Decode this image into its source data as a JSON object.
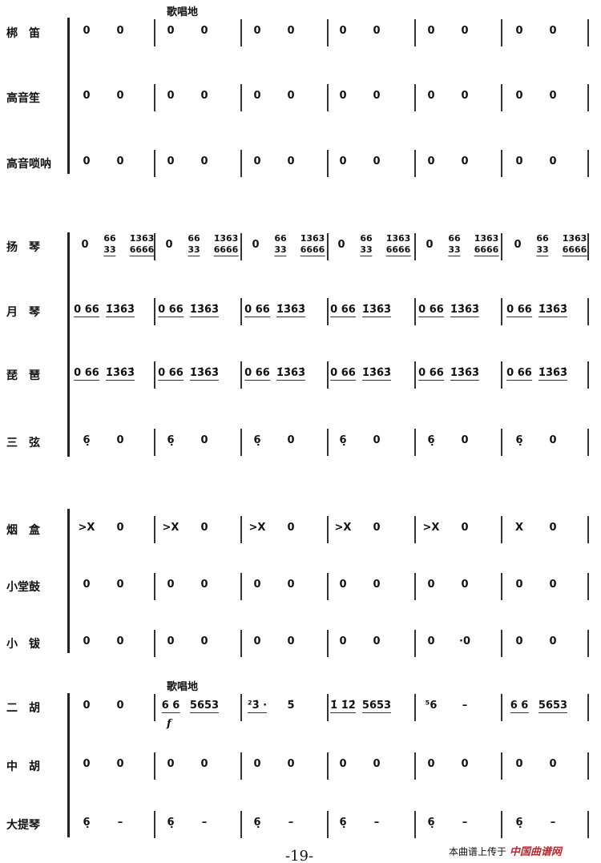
{
  "tempo_top": "歌唱地",
  "tempo_erhu": "歌唱地",
  "dynamic": "f",
  "page_number": "-19-",
  "watermark": {
    "text": "本曲谱上传于",
    "site": "中国曲谱网"
  },
  "instruments": [
    {
      "name": "梆　笛",
      "measures": [
        [
          "0",
          "0"
        ],
        [
          "0",
          "0"
        ],
        [
          "0",
          "0"
        ],
        [
          "0",
          "0"
        ],
        [
          "0",
          "0"
        ],
        [
          "0",
          "0"
        ]
      ]
    },
    {
      "name": "高音笙",
      "measures": [
        [
          "0",
          "0"
        ],
        [
          "0",
          "0"
        ],
        [
          "0",
          "0"
        ],
        [
          "0",
          "0"
        ],
        [
          "0",
          "0"
        ],
        [
          "0",
          "0"
        ]
      ]
    },
    {
      "name": "高音唢呐",
      "measures": [
        [
          "0",
          "0"
        ],
        [
          "0",
          "0"
        ],
        [
          "0",
          "0"
        ],
        [
          "0",
          "0"
        ],
        [
          "0",
          "0"
        ],
        [
          "0",
          "0"
        ]
      ]
    },
    {
      "name": "扬　琴",
      "measures": [
        [
          "0",
          "66/33",
          "1̇3̇6̇3̇/6666"
        ],
        [
          "0",
          "66/33",
          "1̇3̇6̇3̇/6666"
        ],
        [
          "0",
          "66/33",
          "1̇3̇6̇3̇/6666"
        ],
        [
          "0",
          "66/33",
          "1̇3̇6̇3̇/6666"
        ],
        [
          "0",
          "66/33",
          "1̇3̇6̇3̇/6666"
        ],
        [
          "0",
          "66/33",
          "1̇3̇6̇3̇/6666"
        ]
      ]
    },
    {
      "name": "月　琴",
      "measures": [
        [
          "0 66",
          "1̇3̇6̇3̇"
        ],
        [
          "0 66",
          "1̇3̇6̇3̇"
        ],
        [
          "0 66",
          "1̇3̇6̇3̇"
        ],
        [
          "0 66",
          "1̇3̇6̇3̇"
        ],
        [
          "0 66",
          "1̇3̇6̇3̇"
        ],
        [
          "0 66",
          "1̇3̇6̇3̇"
        ]
      ]
    },
    {
      "name": "琵　琶",
      "measures": [
        [
          "0 66",
          "1̇3̇6̇3̇"
        ],
        [
          "0 66",
          "1̇3̇6̇3̇"
        ],
        [
          "0 66",
          "1̇3̇6̇3̇"
        ],
        [
          "0 66",
          "1̇3̇6̇3̇"
        ],
        [
          "0 66",
          "1̇3̇6̇3̇"
        ],
        [
          "0 66",
          "1̇3̇6̇3̇"
        ]
      ]
    },
    {
      "name": "三　弦",
      "measures": [
        [
          "6̣",
          "0"
        ],
        [
          "6̣",
          "0"
        ],
        [
          "6̣",
          "0"
        ],
        [
          "6̣",
          "0"
        ],
        [
          "6̣",
          "0"
        ],
        [
          "6̣",
          "0"
        ]
      ]
    },
    {
      "name": "烟　盒",
      "measures": [
        [
          ">X",
          "0"
        ],
        [
          ">X",
          "0"
        ],
        [
          ">X",
          "0"
        ],
        [
          ">X",
          "0"
        ],
        [
          ">X",
          "0"
        ],
        [
          "X",
          "0"
        ]
      ]
    },
    {
      "name": "小堂鼓",
      "measures": [
        [
          "0",
          "0"
        ],
        [
          "0",
          "0"
        ],
        [
          "0",
          "0"
        ],
        [
          "0",
          "0"
        ],
        [
          "0",
          "0"
        ],
        [
          "0",
          "0"
        ]
      ]
    },
    {
      "name": "小　钹",
      "measures": [
        [
          "0",
          "0"
        ],
        [
          "0",
          "0"
        ],
        [
          "0",
          "0"
        ],
        [
          "0",
          "0"
        ],
        [
          "0",
          "·0"
        ],
        [
          "0",
          "0"
        ]
      ]
    },
    {
      "name": "二　胡",
      "measures": [
        [
          "0",
          "0"
        ],
        [
          "6 6",
          "5653"
        ],
        [
          "²3̇ ·",
          "5̇"
        ],
        [
          "1̇ 1̇2̇",
          "5653"
        ],
        [
          "⁵6",
          "–"
        ],
        [
          "6 6",
          "5653"
        ]
      ]
    },
    {
      "name": "中　胡",
      "measures": [
        [
          "0",
          "0"
        ],
        [
          "0",
          "0"
        ],
        [
          "0",
          "0"
        ],
        [
          "0",
          "0"
        ],
        [
          "0",
          "0"
        ],
        [
          "0",
          "0"
        ]
      ]
    },
    {
      "name": "大提琴",
      "measures": [
        [
          "6̣",
          "–"
        ],
        [
          "6̣",
          "–"
        ],
        [
          "6̣",
          "–"
        ],
        [
          "6̣",
          "–"
        ],
        [
          "6̣",
          "–"
        ],
        [
          "6̣",
          "–"
        ]
      ]
    }
  ]
}
